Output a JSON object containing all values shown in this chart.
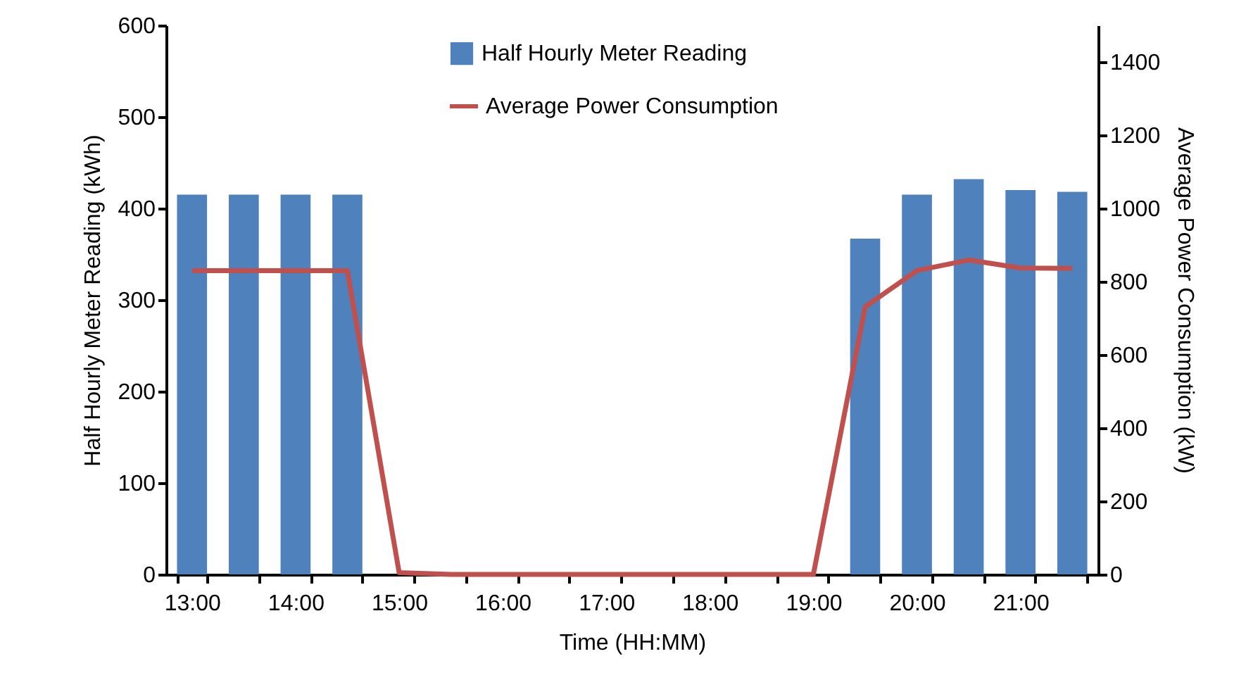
{
  "chart_data": {
    "type": "bar",
    "xlabel": "Time (HH:MM)",
    "ylabel": "Half Hourly Meter Reading (kWh)",
    "y2label": "Average Power Consumption (kW)",
    "categories": [
      "13:00",
      null,
      "14:00",
      null,
      "15:00",
      null,
      "16:00",
      null,
      "17:00",
      null,
      "18:00",
      null,
      "19:00",
      null,
      "20:00",
      null,
      "21:00",
      null
    ],
    "series": [
      {
        "name": "Half Hourly Meter Reading",
        "color": "#4f81bd",
        "values": [
          415,
          415,
          415,
          415,
          null,
          0,
          0,
          0,
          0,
          0,
          0,
          0,
          0,
          367,
          415,
          432,
          420,
          418
        ]
      },
      {
        "name": "Average Power Consumption",
        "type": "line",
        "axis": "y2",
        "color": "#c0504d",
        "values": [
          830,
          830,
          830,
          830,
          5,
          0,
          0,
          0,
          0,
          0,
          0,
          0,
          0,
          731,
          830,
          859,
          837,
          836
        ]
      }
    ],
    "ylim": [
      0,
      600
    ],
    "yticks": [
      0,
      100,
      200,
      300,
      400,
      500,
      600
    ],
    "y2lim": [
      0,
      1500
    ],
    "y2ticks": [
      0,
      200,
      400,
      600,
      800,
      1000,
      1200,
      1400
    ],
    "grid": false,
    "legend": "top",
    "line_style": "solid",
    "marker": "none"
  }
}
